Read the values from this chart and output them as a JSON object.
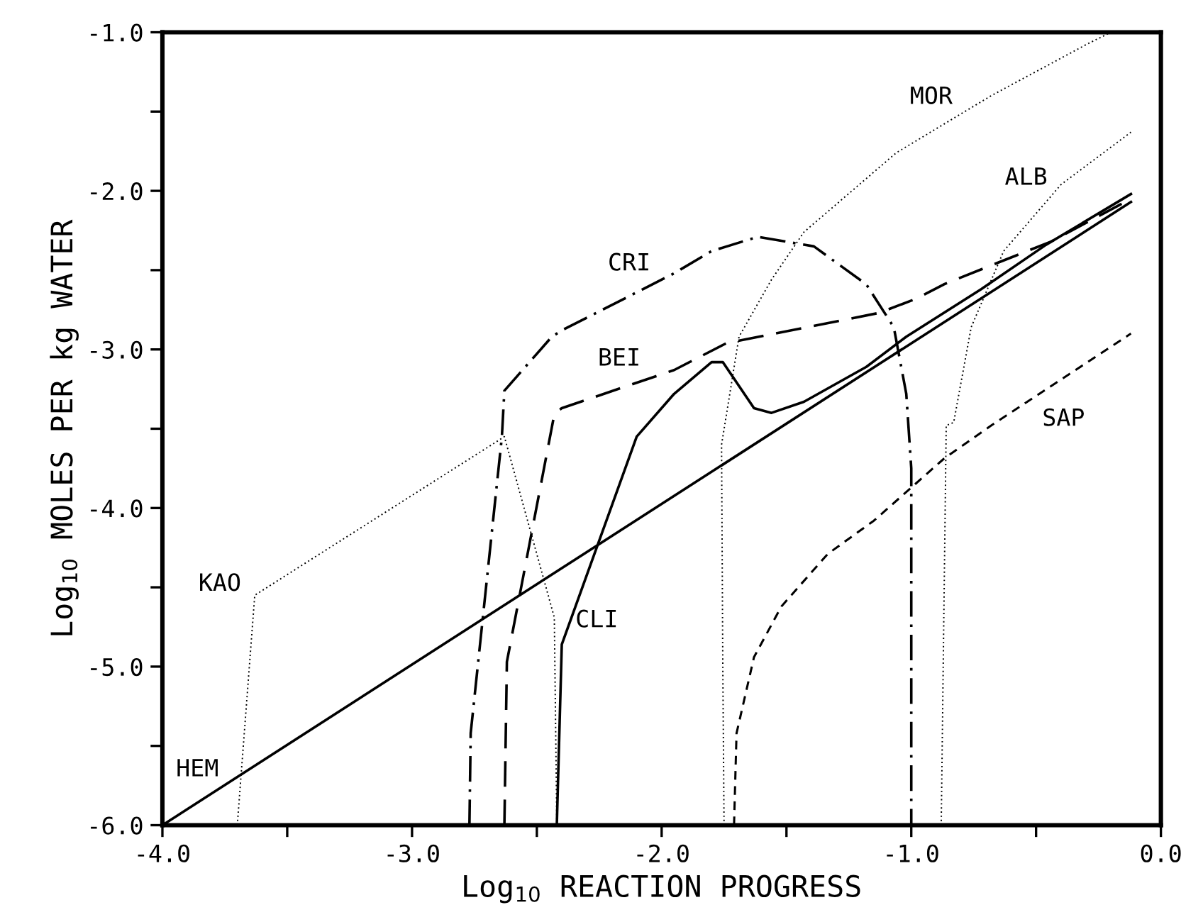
{
  "chart_data": {
    "type": "line",
    "xlabel": "Log$_{10}$ REACTION PROGRESS",
    "ylabel": "Log$_{10}$ MOLES PER kg WATER",
    "xlim": [
      -4.0,
      0.0
    ],
    "ylim": [
      -6.0,
      -1.0
    ],
    "xticks": [
      {
        "value": -4.0,
        "label": "-4.0"
      },
      {
        "value": -3.5,
        "label": null
      },
      {
        "value": -3.0,
        "label": "-3.0"
      },
      {
        "value": -2.5,
        "label": null
      },
      {
        "value": -2.0,
        "label": "-2.0"
      },
      {
        "value": -1.5,
        "label": null
      },
      {
        "value": -1.0,
        "label": "-1.0"
      },
      {
        "value": -0.5,
        "label": null
      },
      {
        "value": 0.0,
        "label": "0.0"
      }
    ],
    "yticks": [
      {
        "value": -6.0,
        "label": "-6.0"
      },
      {
        "value": -5.5,
        "label": null
      },
      {
        "value": -5.0,
        "label": "-5.0"
      },
      {
        "value": -4.5,
        "label": null
      },
      {
        "value": -4.0,
        "label": "-4.0"
      },
      {
        "value": -3.5,
        "label": null
      },
      {
        "value": -3.0,
        "label": "-3.0"
      },
      {
        "value": -2.5,
        "label": null
      },
      {
        "value": -2.0,
        "label": "-2.0"
      },
      {
        "value": -1.5,
        "label": null
      },
      {
        "value": -1.0,
        "label": "-1.0"
      }
    ],
    "grid": false,
    "marker": "none",
    "series": [
      {
        "name": "HEM",
        "color": "#000000",
        "line_style": "solid",
        "x": [
          -4.0,
          -0.12
        ],
        "values": [
          -6.0,
          -2.07
        ]
      },
      {
        "name": "CLI",
        "color": "#000000",
        "line_style": "solid",
        "x": [
          -2.42,
          -2.4,
          -2.1,
          -1.95,
          -1.8,
          -1.755,
          -1.63,
          -1.56,
          -1.43,
          -1.18,
          -1.02,
          -0.72,
          -0.46,
          -0.12
        ],
        "values": [
          -6.0,
          -4.86,
          -3.55,
          -3.28,
          -3.08,
          -3.08,
          -3.37,
          -3.4,
          -3.33,
          -3.11,
          -2.92,
          -2.62,
          -2.34,
          -2.02
        ]
      },
      {
        "name": "CRI",
        "color": "#000000",
        "line_style": "dashdot",
        "x": [
          -2.77,
          -2.765,
          -2.64,
          -2.63,
          -2.44,
          -2.4,
          -1.95,
          -1.8,
          -1.615,
          -1.39,
          -1.18,
          -1.07,
          -1.02,
          -1.0,
          -1.0
        ],
        "values": [
          -6.0,
          -5.42,
          -3.55,
          -3.26,
          -2.92,
          -2.88,
          -2.52,
          -2.38,
          -2.29,
          -2.35,
          -2.59,
          -2.86,
          -3.28,
          -3.75,
          -6.0
        ]
      },
      {
        "name": "BEI",
        "color": "#000000",
        "line_style": "longdash",
        "x": [
          -2.63,
          -2.62,
          -2.43,
          -2.4,
          -1.95,
          -1.74,
          -1.13,
          -0.98,
          -0.87,
          -0.68,
          -0.44,
          -0.12
        ],
        "values": [
          -6.0,
          -4.97,
          -3.41,
          -3.37,
          -3.13,
          -2.96,
          -2.77,
          -2.68,
          -2.59,
          -2.47,
          -2.32,
          -2.05
        ]
      },
      {
        "name": "KAO",
        "color": "#000000",
        "line_style": "dotted",
        "x": [
          -3.7,
          -3.63,
          -2.63,
          -2.43,
          -2.42
        ],
        "values": [
          -6.0,
          -4.55,
          -3.55,
          -4.69,
          -6.0
        ]
      },
      {
        "name": "MOR",
        "color": "#000000",
        "line_style": "dotted",
        "x": [
          -1.75,
          -1.755,
          -1.76,
          -1.69,
          -1.56,
          -1.43,
          -1.06,
          -0.68,
          -0.29,
          -0.2
        ],
        "values": [
          -6.0,
          -5.0,
          -3.6,
          -2.92,
          -2.56,
          -2.26,
          -1.76,
          -1.4,
          -1.07,
          -1.0
        ]
      },
      {
        "name": "ALB",
        "color": "#000000",
        "line_style": "dotted",
        "x": [
          -0.88,
          -0.86,
          -0.83,
          -0.76,
          -0.63,
          -0.4,
          -0.12
        ],
        "values": [
          -6.0,
          -3.48,
          -3.46,
          -2.86,
          -2.38,
          -1.96,
          -1.63
        ]
      },
      {
        "name": "SAP",
        "color": "#000000",
        "line_style": "dashed",
        "x": [
          -1.71,
          -1.7,
          -1.63,
          -1.52,
          -1.335,
          -1.15,
          -0.87,
          -0.68,
          -0.12
        ],
        "values": [
          -6.0,
          -5.42,
          -4.94,
          -4.62,
          -4.29,
          -4.08,
          -3.69,
          -3.48,
          -2.9
        ]
      }
    ]
  }
}
